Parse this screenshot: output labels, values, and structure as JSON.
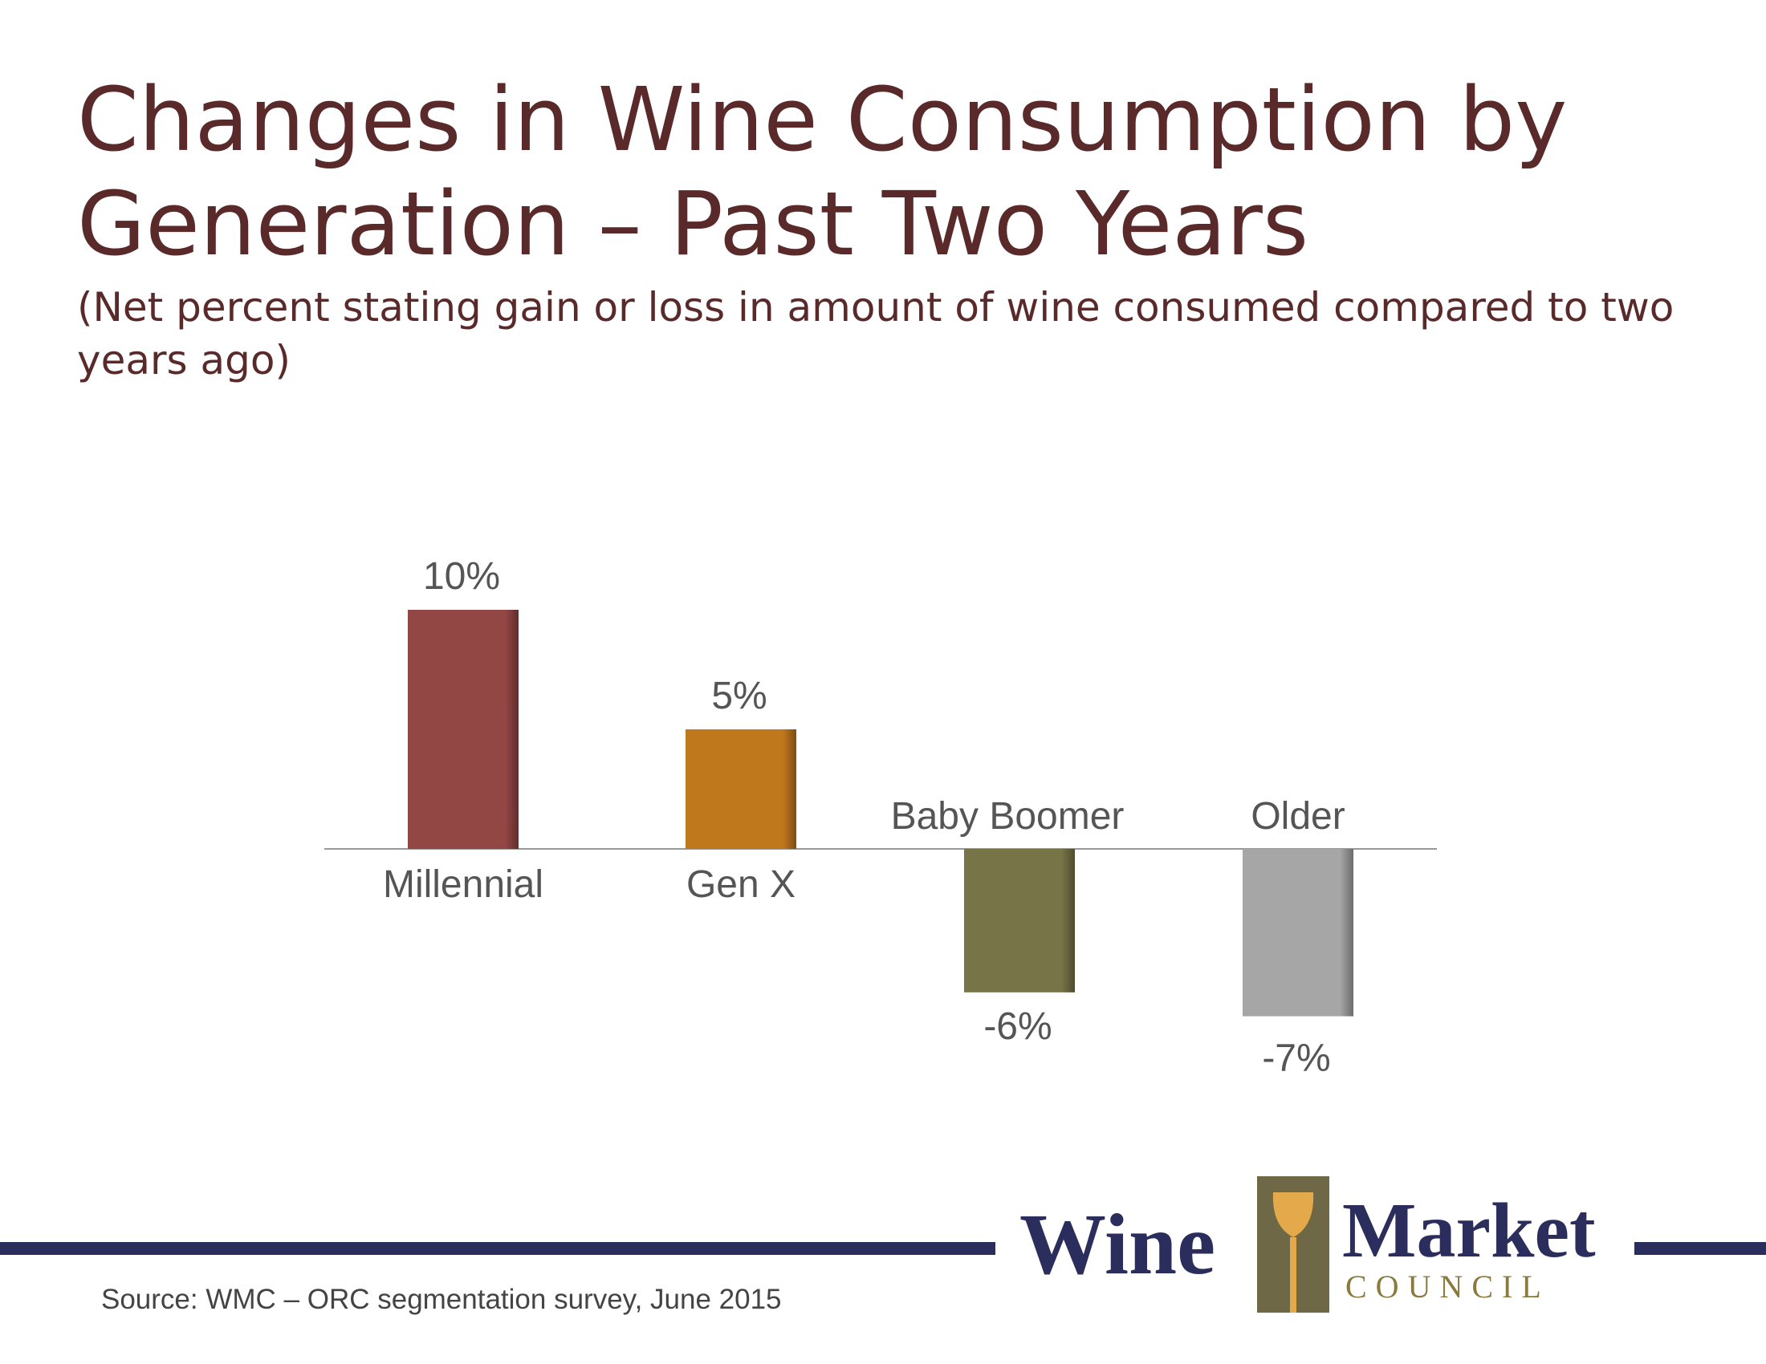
{
  "title": "Changes in Wine Consumption by Generation – Past Two Years",
  "subtitle": "(Net percent stating gain or loss in amount of wine consumed compared to two years ago)",
  "source": "Source:  WMC – ORC segmentation survey, June 2015",
  "logo": {
    "word1": "Wine",
    "word2": "Market",
    "word3": "COUNCIL"
  },
  "chart_data": {
    "type": "bar",
    "title": "Changes in Wine Consumption by Generation – Past Two Years",
    "subtitle": "(Net percent stating gain or loss in amount of wine consumed compared to two years ago)",
    "categories": [
      "Millennial",
      "Gen X",
      "Baby Boomer",
      "Older"
    ],
    "values": [
      10,
      5,
      -6,
      -7
    ],
    "value_labels": [
      "10%",
      "5%",
      "-6%",
      "-7%"
    ],
    "colors": [
      "#934745",
      "#c0781d",
      "#777447",
      "#a6a6a6"
    ],
    "xlabel": "",
    "ylabel": "",
    "ylim": [
      -7,
      10
    ],
    "unit": "%",
    "grid": false,
    "legend": "none"
  }
}
